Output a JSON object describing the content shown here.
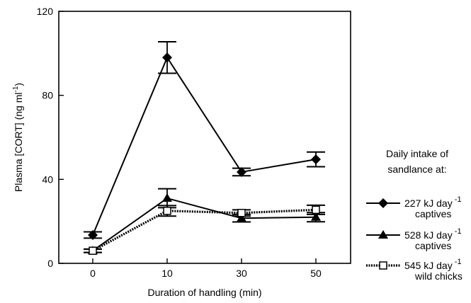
{
  "chart_data": {
    "type": "line",
    "categories": [
      "0",
      "10",
      "30",
      "50"
    ],
    "xlabel": "Duration of handling (min)",
    "ylabel_main": "Plasma [CORT] (ng ml",
    "ylabel_sup": "-1",
    "ylabel_tail": ")",
    "ylim": [
      0,
      120
    ],
    "yticks": [
      "0",
      "40",
      "80",
      "120"
    ],
    "legend_title": [
      "Daily intake of",
      "sandlance at:"
    ],
    "series": [
      {
        "name_main": "227 kJ day",
        "name_sup": "-1",
        "name_line2": "captives",
        "marker": "diamond",
        "dash": "solid",
        "values": [
          13.5,
          98,
          43.5,
          49.5
        ],
        "errors": [
          1.5,
          7.5,
          1.8,
          3.5
        ]
      },
      {
        "name_main": "528 kJ day",
        "name_sup": "-1",
        "name_line2": "captives",
        "marker": "triangle",
        "dash": "solid",
        "values": [
          6,
          31,
          21.5,
          22
        ],
        "errors": [
          0.8,
          4.5,
          1.8,
          2.2
        ]
      },
      {
        "name_main": "545 kJ day",
        "name_sup": "-1",
        "name_line2": "wild chicks",
        "marker": "square-open",
        "dash": "dotted",
        "values": [
          6,
          25,
          24,
          25.5
        ],
        "errors": [
          0.8,
          2.5,
          1.5,
          2.2
        ]
      }
    ]
  }
}
